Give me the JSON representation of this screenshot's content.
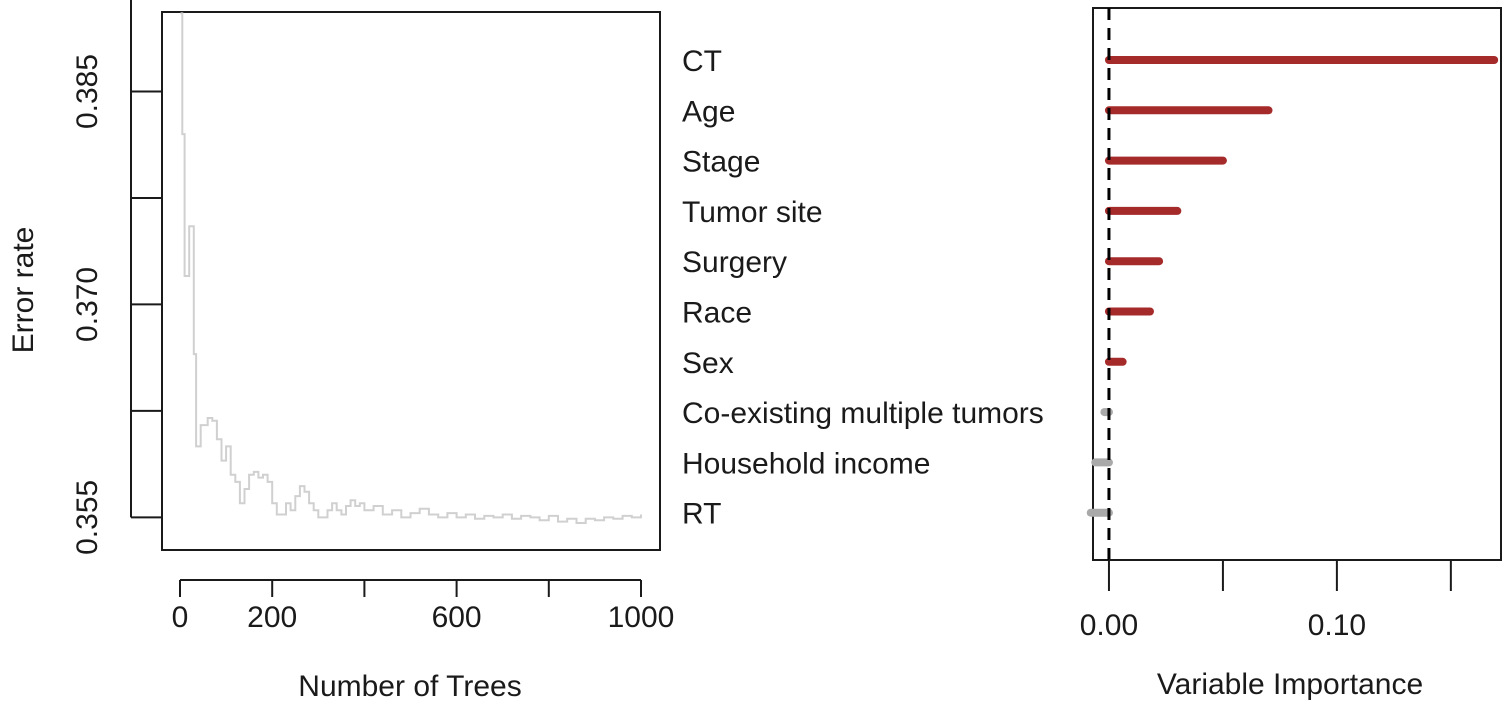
{
  "chart_data": [
    {
      "type": "line",
      "xlabel": "Number of Trees",
      "ylabel": "Error rate",
      "xlim": [
        0,
        1000
      ],
      "ylim": [
        0.3527,
        0.3906
      ],
      "x_ticks": [
        0,
        200,
        600,
        1000
      ],
      "x_minor_ticks": [
        400,
        800
      ],
      "y_ticks": [
        0.355,
        0.37,
        0.385
      ],
      "y_tick_labels": [
        "0.355",
        "0.370",
        "0.385"
      ],
      "y_minor_ticks": [
        0.3625,
        0.3775,
        0.3925
      ],
      "grid": false,
      "series": [
        {
          "color": "#d0d0d0",
          "x": [
            1,
            5,
            10,
            15,
            20,
            25,
            30,
            35,
            40,
            45,
            50,
            60,
            70,
            80,
            90,
            100,
            110,
            120,
            130,
            140,
            150,
            160,
            170,
            180,
            190,
            200,
            210,
            220,
            230,
            240,
            250,
            260,
            270,
            280,
            290,
            300,
            310,
            320,
            330,
            340,
            350,
            360,
            370,
            380,
            390,
            400,
            420,
            440,
            460,
            480,
            500,
            520,
            540,
            560,
            580,
            600,
            620,
            640,
            660,
            680,
            700,
            720,
            740,
            760,
            780,
            800,
            820,
            840,
            860,
            880,
            900,
            920,
            940,
            960,
            980,
            1000
          ],
          "y": [
            0.3905,
            0.382,
            0.372,
            0.372,
            0.3755,
            0.3755,
            0.3665,
            0.36,
            0.36,
            0.3615,
            0.3615,
            0.362,
            0.3618,
            0.3605,
            0.359,
            0.36,
            0.358,
            0.3575,
            0.356,
            0.357,
            0.358,
            0.3582,
            0.3578,
            0.358,
            0.3575,
            0.356,
            0.3552,
            0.3552,
            0.356,
            0.3555,
            0.3565,
            0.3572,
            0.3568,
            0.356,
            0.3555,
            0.355,
            0.355,
            0.3555,
            0.356,
            0.3555,
            0.3552,
            0.3558,
            0.3562,
            0.3558,
            0.356,
            0.3555,
            0.3558,
            0.3552,
            0.3555,
            0.355,
            0.3553,
            0.3556,
            0.3552,
            0.355,
            0.3553,
            0.355,
            0.3552,
            0.3549,
            0.3551,
            0.355,
            0.3552,
            0.3549,
            0.3551,
            0.355,
            0.3548,
            0.3551,
            0.3547,
            0.3549,
            0.3546,
            0.3549,
            0.3548,
            0.355,
            0.3549,
            0.3551,
            0.355,
            0.3552
          ]
        }
      ]
    },
    {
      "type": "bar",
      "orientation": "horizontal",
      "xlabel": "Variable Importance",
      "xlim": [
        -0.007,
        0.172
      ],
      "x_ticks": [
        0.0,
        0.1
      ],
      "x_tick_labels": [
        "0.00",
        "0.10"
      ],
      "x_minor_ticks": [
        0.05,
        0.15
      ],
      "reference_line": 0.0,
      "grid": false,
      "categories": [
        "CT",
        "Age",
        "Stage",
        "Tumor site",
        "Surgery",
        "Race",
        "Sex",
        "Co-existing multiple tumors",
        "Household income",
        "RT"
      ],
      "values": [
        0.169,
        0.07,
        0.05,
        0.03,
        0.022,
        0.018,
        0.006,
        -0.002,
        -0.006,
        -0.008
      ],
      "positive_color": "#a52a2a",
      "negative_color": "#a9a9a9"
    }
  ]
}
